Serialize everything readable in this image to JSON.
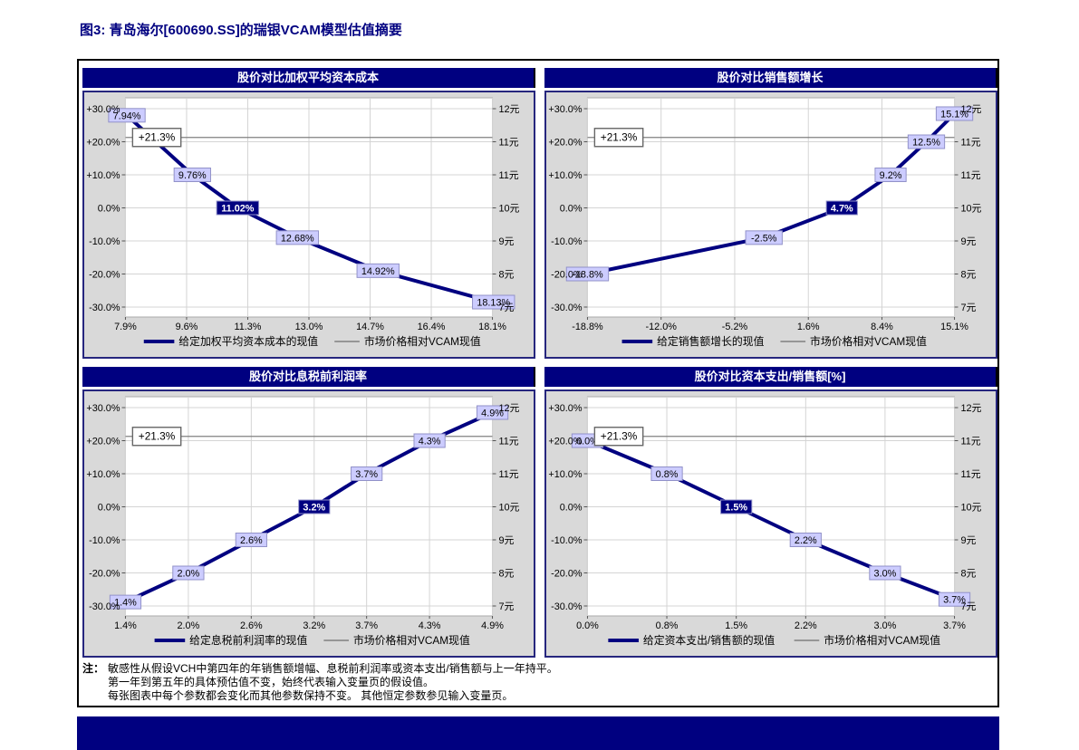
{
  "figure_title": "图3: 青岛海尔[600690.SS]的瑞银VCAM模型估值摘要",
  "colors": {
    "navy": "#000080",
    "panel_title_bg": "#000080",
    "series_line": "#000080",
    "market_line_gray": "#808080",
    "label_box_light": "#ccccff",
    "label_box_border": "#9191c8",
    "label_box_dark": "#000080",
    "chart_bg_gray": "#d9d9d9",
    "plot_bg": "#ffffff",
    "gridline": "#d4d4d4",
    "bottom_bar": "#000080"
  },
  "footnote": {
    "prefix": "注：",
    "lines": [
      "敏感性从假设VCH中第四年的年销售额增幅、息税前利润率或资本支出/销售额与上一年持平。",
      "第一年到第五年的具体预估值不变，始终代表输入变量页的假设值。",
      "每张图表中每个参数都会变化而其他参数保持不变。 其他恒定参数参见输入变量页。"
    ]
  },
  "chart_data": [
    {
      "type": "line",
      "title": "股价对比加权平均资本成本",
      "x_tick_labels": [
        "7.9%",
        "9.6%",
        "11.3%",
        "13.0%",
        "14.7%",
        "16.4%",
        "18.1%"
      ],
      "x_tick_values": [
        7.9,
        9.6,
        11.3,
        13.0,
        14.7,
        16.4,
        18.1
      ],
      "x_range": [
        7.9,
        18.1
      ],
      "left_axis_tick_labels": [
        "+30.0%",
        "+20.0%",
        "+10.0%",
        "0.0%",
        "-10.0%",
        "-20.0%",
        "-30.0%"
      ],
      "left_axis_range": [
        -30,
        30
      ],
      "right_axis_tick_labels": [
        "12元",
        "11元",
        "11元",
        "10元",
        "9元",
        "8元",
        "7元"
      ],
      "market_line": {
        "value": 21.3,
        "label": "+21.3%"
      },
      "legend": [
        "给定加权平均资本成本的现值",
        "市场价格相对VCAM现值"
      ],
      "series": [
        {
          "name": "给定加权平均资本成本的现值",
          "points": [
            {
              "x": 7.94,
              "y": 28,
              "label": "7.94%",
              "highlight": false
            },
            {
              "x": 9.76,
              "y": 10,
              "label": "9.76%",
              "highlight": false
            },
            {
              "x": 11.02,
              "y": 0,
              "label": "11.02%",
              "highlight": true
            },
            {
              "x": 12.68,
              "y": -9,
              "label": "12.68%",
              "highlight": false
            },
            {
              "x": 14.92,
              "y": -19,
              "label": "14.92%",
              "highlight": false
            },
            {
              "x": 18.13,
              "y": -28.5,
              "label": "18.13%",
              "highlight": false
            }
          ]
        },
        {
          "name": "市场价格相对VCAM现值",
          "constant_y": 21.3
        }
      ]
    },
    {
      "type": "line",
      "title": "股价对比销售额增长",
      "x_tick_labels": [
        "-18.8%",
        "-12.0%",
        "-5.2%",
        "1.6%",
        "8.4%",
        "15.1%"
      ],
      "x_tick_values": [
        -18.8,
        -12.0,
        -5.2,
        1.6,
        8.4,
        15.1
      ],
      "x_range": [
        -18.8,
        15.1
      ],
      "left_axis_tick_labels": [
        "+30.0%",
        "+20.0%",
        "+10.0%",
        "0.0%",
        "-10.0%",
        "-20.0%",
        "-30.0%"
      ],
      "left_axis_range": [
        -30,
        30
      ],
      "right_axis_tick_labels": [
        "12元",
        "11元",
        "11元",
        "10元",
        "9元",
        "8元",
        "7元"
      ],
      "market_line": {
        "value": 21.3,
        "label": "+21.3%"
      },
      "legend": [
        "给定销售额增长的现值",
        "市场价格相对VCAM现值"
      ],
      "series": [
        {
          "name": "给定销售额增长的现值",
          "points": [
            {
              "x": -18.8,
              "y": -20,
              "label": "-18.8%",
              "highlight": false
            },
            {
              "x": -2.5,
              "y": -9,
              "label": "-2.5%",
              "highlight": false
            },
            {
              "x": 4.7,
              "y": 0,
              "label": "4.7%",
              "highlight": true
            },
            {
              "x": 9.2,
              "y": 10,
              "label": "9.2%",
              "highlight": false
            },
            {
              "x": 12.5,
              "y": 20,
              "label": "12.5%",
              "highlight": false
            },
            {
              "x": 15.1,
              "y": 28.5,
              "label": "15.1%",
              "highlight": false
            }
          ]
        },
        {
          "name": "市场价格相对VCAM现值",
          "constant_y": 21.3
        }
      ]
    },
    {
      "type": "line",
      "title": "股价对比息税前利润率",
      "x_tick_labels": [
        "1.4%",
        "2.0%",
        "2.6%",
        "3.2%",
        "3.7%",
        "4.3%",
        "4.9%"
      ],
      "x_tick_values": [
        1.4,
        2.0,
        2.6,
        3.2,
        3.7,
        4.3,
        4.9
      ],
      "x_range": [
        1.4,
        4.9
      ],
      "left_axis_tick_labels": [
        "+30.0%",
        "+20.0%",
        "+10.0%",
        "0.0%",
        "-10.0%",
        "-20.0%",
        "-30.0%"
      ],
      "left_axis_range": [
        -30,
        30
      ],
      "right_axis_tick_labels": [
        "12元",
        "11元",
        "11元",
        "10元",
        "9元",
        "8元",
        "7元"
      ],
      "market_line": {
        "value": 21.3,
        "label": "+21.3%"
      },
      "legend": [
        "给定息税前利润率的现值",
        "市场价格相对VCAM现值"
      ],
      "series": [
        {
          "name": "给定息税前利润率的现值",
          "points": [
            {
              "x": 1.4,
              "y": -28.8,
              "label": "1.4%",
              "highlight": false
            },
            {
              "x": 2.0,
              "y": -20,
              "label": "2.0%",
              "highlight": false
            },
            {
              "x": 2.6,
              "y": -10,
              "label": "2.6%",
              "highlight": false
            },
            {
              "x": 3.2,
              "y": 0,
              "label": "3.2%",
              "highlight": true
            },
            {
              "x": 3.7,
              "y": 10,
              "label": "3.7%",
              "highlight": false
            },
            {
              "x": 4.3,
              "y": 20,
              "label": "4.3%",
              "highlight": false
            },
            {
              "x": 4.9,
              "y": 28.5,
              "label": "4.9%",
              "highlight": false
            }
          ]
        },
        {
          "name": "市场价格相对VCAM现值",
          "constant_y": 21.3
        }
      ]
    },
    {
      "type": "line",
      "title": "股价对比资本支出/销售额[%]",
      "x_tick_labels": [
        "0.0%",
        "0.8%",
        "1.5%",
        "2.2%",
        "3.0%",
        "3.7%"
      ],
      "x_tick_values": [
        0.0,
        0.8,
        1.5,
        2.2,
        3.0,
        3.7
      ],
      "x_range": [
        0.0,
        3.7
      ],
      "left_axis_tick_labels": [
        "+30.0%",
        "+20.0%",
        "+10.0%",
        "0.0%",
        "-10.0%",
        "-20.0%",
        "-30.0%"
      ],
      "left_axis_range": [
        -30,
        30
      ],
      "right_axis_tick_labels": [
        "12元",
        "11元",
        "11元",
        "10元",
        "9元",
        "8元",
        "7元"
      ],
      "market_line": {
        "value": 21.3,
        "label": "+21.3%"
      },
      "legend": [
        "给定资本支出/销售额的现值",
        "市场价格相对VCAM现值"
      ],
      "series": [
        {
          "name": "给定资本支出/销售额的现值",
          "points": [
            {
              "x": 0.0,
              "y": 20,
              "label": "0.0%",
              "highlight": false
            },
            {
              "x": 0.8,
              "y": 10,
              "label": "0.8%",
              "highlight": false
            },
            {
              "x": 1.5,
              "y": 0,
              "label": "1.5%",
              "highlight": true
            },
            {
              "x": 2.2,
              "y": -10,
              "label": "2.2%",
              "highlight": false
            },
            {
              "x": 3.0,
              "y": -20,
              "label": "3.0%",
              "highlight": false
            },
            {
              "x": 3.7,
              "y": -28,
              "label": "3.7%",
              "highlight": false
            }
          ]
        },
        {
          "name": "市场价格相对VCAM现值",
          "constant_y": 21.3
        }
      ]
    }
  ]
}
